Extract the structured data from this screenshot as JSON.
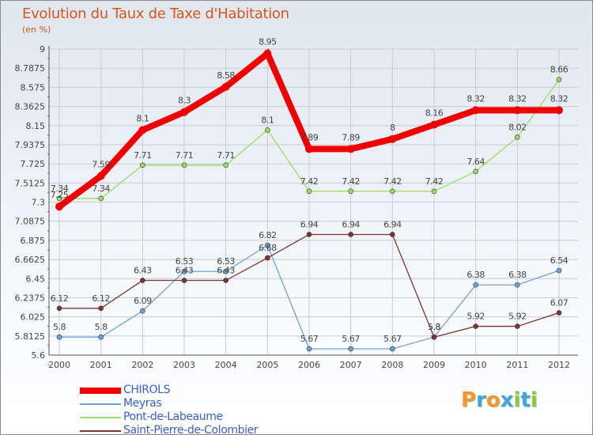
{
  "title": "Evolution du Taux de Taxe d'Habitation",
  "subtitle": "(en %)",
  "logo": {
    "letters": [
      "P",
      "r",
      "o",
      "x",
      "i",
      "t",
      "i"
    ],
    "colors": [
      "#f19a2b",
      "#3ea6d8",
      "#f19a2b",
      "#3ea6d8",
      "#8cc63f",
      "#3ea6d8",
      "#8cc63f"
    ]
  },
  "chart_data": {
    "type": "line",
    "x": [
      "2000",
      "2001",
      "2002",
      "2003",
      "2004",
      "2005",
      "2006",
      "2007",
      "2008",
      "2009",
      "2010",
      "2011",
      "2012"
    ],
    "ylim": [
      5.6,
      9
    ],
    "yticks": [
      "9",
      "8.7875",
      "8.575",
      "8.3625",
      "8.15",
      "7.9375",
      "7.725",
      "7.5125",
      "7.3",
      "7.0875",
      "6.875",
      "6.6625",
      "6.45",
      "6.2375",
      "6.025",
      "5.8125",
      "5.6"
    ],
    "grid": true,
    "legend_position": "bottom-left",
    "series": [
      {
        "name": "CHIROLS",
        "color": "#ee0000",
        "values": [
          7.25,
          7.59,
          8.1,
          8.3,
          8.58,
          8.95,
          7.89,
          7.89,
          8,
          8.16,
          8.32,
          8.32,
          8.32
        ],
        "labels": [
          "7.25",
          "7.59",
          "8.1",
          "8.3",
          "8.58",
          "8.95",
          "7.89",
          "7.89",
          "8",
          "8.16",
          "8.32",
          "8.32",
          "8.32"
        ]
      },
      {
        "name": "Meyras",
        "color": "#6fa3d6",
        "values": [
          5.8,
          5.8,
          6.09,
          6.53,
          6.53,
          6.82,
          5.67,
          5.67,
          5.67,
          5.8,
          6.38,
          6.38,
          6.54
        ],
        "labels": [
          "5.8",
          "5.8",
          "6.09",
          "6.53",
          "6.53",
          "6.82",
          "5.67",
          "5.67",
          "5.67",
          "5.8",
          "6.38",
          "6.38",
          "6.54"
        ]
      },
      {
        "name": "Pont-de-Labeaume",
        "color": "#99dd66",
        "values": [
          7.34,
          7.34,
          7.71,
          7.71,
          7.71,
          8.1,
          7.42,
          7.42,
          7.42,
          7.42,
          7.64,
          8.02,
          8.66
        ],
        "labels": [
          "7.34",
          "7.34",
          "7.71",
          "7.71",
          "7.71",
          "8.1",
          "7.42",
          "7.42",
          "7.42",
          "7.42",
          "7.64",
          "8.02",
          "8.66"
        ]
      },
      {
        "name": "Saint-Pierre-de-Colombier",
        "color": "#7a3535",
        "values": [
          6.12,
          6.12,
          6.43,
          6.43,
          6.43,
          6.68,
          6.94,
          6.94,
          6.94,
          5.8,
          5.92,
          5.92,
          6.07
        ],
        "labels": [
          "6.12",
          "6.12",
          "6.43",
          "6.43",
          "6.43",
          "6.68",
          "6.94",
          "6.94",
          "6.94",
          "5.8",
          "5.92",
          "5.92",
          "6.07"
        ]
      }
    ]
  }
}
